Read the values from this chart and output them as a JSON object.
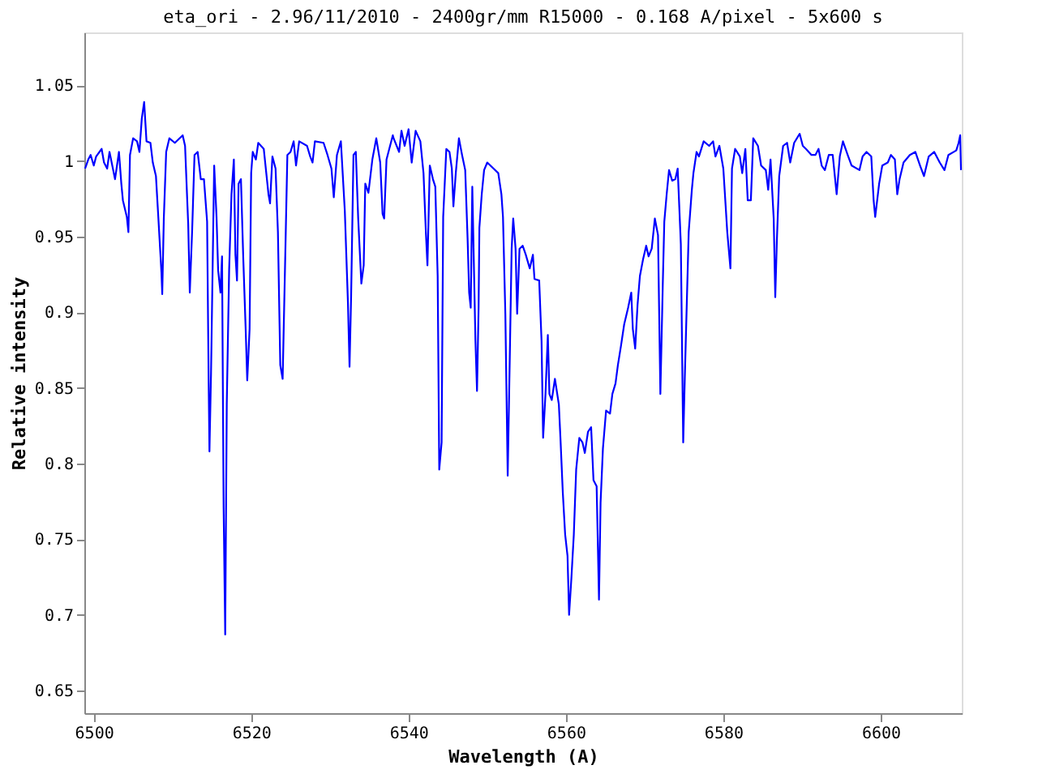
{
  "chart_data": {
    "type": "line",
    "title": "eta_ori - 2.96/11/2010 - 2400gr/mm R15000 - 0.168 A/pixel - 5x600 s",
    "xlabel": "Wavelength (A)",
    "ylabel": "Relative intensity",
    "xlim": [
      6498.8,
      6610.3
    ],
    "ylim": [
      0.635,
      1.085
    ],
    "xticks": [
      6500,
      6520,
      6540,
      6560,
      6580,
      6600
    ],
    "yticks": [
      0.65,
      0.7,
      0.75,
      0.8,
      0.85,
      0.9,
      0.95,
      1,
      1.05
    ],
    "grid": false,
    "legend": false,
    "marker": "none",
    "line_style": "solid",
    "series": [
      {
        "color": "#0000ff",
        "x": [
          6498.9,
          6499.3,
          6499.6,
          6500.0,
          6500.3,
          6501.0,
          6501.3,
          6501.7,
          6502.0,
          6502.7,
          6503.2,
          6503.5,
          6503.7,
          6504.2,
          6504.4,
          6504.6,
          6505.0,
          6505.5,
          6505.8,
          6506.1,
          6506.4,
          6506.7,
          6507.2,
          6507.5,
          6507.9,
          6508.2,
          6508.6,
          6508.7,
          6508.9,
          6509.2,
          6509.6,
          6510.3,
          6511.3,
          6511.6,
          6512.0,
          6512.2,
          6512.5,
          6512.8,
          6513.2,
          6513.6,
          6514.0,
          6514.4,
          6514.6,
          6514.7,
          6514.9,
          6515.3,
          6515.6,
          6515.8,
          6516.1,
          6516.3,
          6516.5,
          6516.7,
          6516.9,
          6517.2,
          6517.5,
          6517.8,
          6518.0,
          6518.2,
          6518.4,
          6518.7,
          6519.0,
          6519.3,
          6519.5,
          6519.8,
          6520.0,
          6520.2,
          6520.6,
          6520.9,
          6521.6,
          6522.2,
          6522.4,
          6522.7,
          6523.1,
          6523.4,
          6523.7,
          6524.0,
          6524.4,
          6524.6,
          6525.0,
          6525.4,
          6525.7,
          6526.1,
          6527.1,
          6527.5,
          6527.8,
          6528.1,
          6529.2,
          6529.7,
          6530.2,
          6530.5,
          6530.9,
          6531.4,
          6531.9,
          6532.3,
          6532.5,
          6532.7,
          6533.0,
          6533.3,
          6533.6,
          6534.0,
          6534.3,
          6534.5,
          6534.9,
          6535.4,
          6535.9,
          6536.4,
          6536.7,
          6536.9,
          6537.2,
          6538.0,
          6538.1,
          6538.8,
          6539.1,
          6539.5,
          6540.0,
          6540.4,
          6540.9,
          6541.5,
          6541.9,
          6542.2,
          6542.4,
          6542.7,
          6543.1,
          6543.4,
          6543.7,
          6543.9,
          6544.2,
          6544.4,
          6544.8,
          6545.2,
          6545.5,
          6545.7,
          6546.0,
          6546.4,
          6546.8,
          6547.2,
          6547.5,
          6547.7,
          6547.9,
          6548.1,
          6548.5,
          6548.7,
          6548.9,
          6549.0,
          6549.3,
          6549.6,
          6550.0,
          6550.8,
          6551.4,
          6551.8,
          6552.0,
          6552.3,
          6552.6,
          6552.9,
          6553.1,
          6553.3,
          6553.6,
          6553.8,
          6554.1,
          6554.5,
          6554.9,
          6555.4,
          6555.8,
          6556.0,
          6556.6,
          6556.9,
          6557.1,
          6557.4,
          6557.7,
          6557.9,
          6558.2,
          6558.6,
          6559.1,
          6559.3,
          6559.6,
          6559.9,
          6560.2,
          6560.4,
          6560.7,
          6561.0,
          6561.3,
          6561.7,
          6562.1,
          6562.4,
          6562.8,
          6563.2,
          6563.5,
          6563.9,
          6564.2,
          6564.4,
          6564.7,
          6565.1,
          6565.6,
          6565.9,
          6566.3,
          6566.6,
          6567.0,
          6567.4,
          6567.9,
          6568.3,
          6568.5,
          6568.8,
          6569.1,
          6569.4,
          6569.8,
          6570.2,
          6570.5,
          6570.9,
          6571.3,
          6571.7,
          6572.0,
          6572.3,
          6572.5,
          6572.8,
          6573.1,
          6573.5,
          6573.9,
          6574.2,
          6574.6,
          6574.9,
          6575.1,
          6575.6,
          6576.0,
          6576.2,
          6576.6,
          6576.9,
          6577.5,
          6578.2,
          6578.7,
          6579.0,
          6579.5,
          6580.0,
          6580.5,
          6580.9,
          6581.1,
          6581.5,
          6582.1,
          6582.4,
          6582.8,
          6583.1,
          6583.5,
          6583.8,
          6584.4,
          6584.8,
          6585.4,
          6585.7,
          6586.0,
          6586.4,
          6586.6,
          6586.8,
          6587.1,
          6587.6,
          6588.1,
          6588.5,
          6589.0,
          6589.7,
          6590.1,
          6590.5,
          6591.2,
          6591.7,
          6592.1,
          6592.5,
          6592.9,
          6593.4,
          6593.9,
          6594.4,
          6594.8,
          6595.2,
          6595.8,
          6596.3,
          6597.3,
          6597.7,
          6598.2,
          6598.8,
          6599.1,
          6599.3,
          6599.8,
          6600.2,
          6600.9,
          6601.3,
          6601.8,
          6602.1,
          6602.4,
          6602.9,
          6603.7,
          6604.4,
          6605.0,
          6605.5,
          6606.1,
          6606.8,
          6607.5,
          6608.1,
          6608.6,
          6609.6,
          6609.9,
          6610.1,
          6610.2
        ],
        "values": [
          0.995,
          1.001,
          1.004,
          0.997,
          1.003,
          1.008,
          0.999,
          0.995,
          1.006,
          0.988,
          1.006,
          0.985,
          0.974,
          0.963,
          0.953,
          1.004,
          1.015,
          1.013,
          1.006,
          1.028,
          1.039,
          1.013,
          1.012,
          0.999,
          0.99,
          0.963,
          0.926,
          0.912,
          0.962,
          1.006,
          1.015,
          1.012,
          1.017,
          1.01,
          0.958,
          0.913,
          0.954,
          1.004,
          1.006,
          0.988,
          0.988,
          0.96,
          0.853,
          0.808,
          0.86,
          0.997,
          0.963,
          0.928,
          0.913,
          0.937,
          0.771,
          0.687,
          0.839,
          0.928,
          0.978,
          1.001,
          0.938,
          0.921,
          0.985,
          0.988,
          0.935,
          0.889,
          0.855,
          0.889,
          0.992,
          1.006,
          1.001,
          1.012,
          1.008,
          0.978,
          0.972,
          1.003,
          0.995,
          0.953,
          0.865,
          0.856,
          0.954,
          1.004,
          1.006,
          1.013,
          0.997,
          1.013,
          1.01,
          1.003,
          0.999,
          1.013,
          1.012,
          1.004,
          0.995,
          0.976,
          1.004,
          1.013,
          0.967,
          0.906,
          0.864,
          0.91,
          1.004,
          1.006,
          0.962,
          0.919,
          0.931,
          0.985,
          0.979,
          1.001,
          1.015,
          0.999,
          0.965,
          0.962,
          1.001,
          1.017,
          1.015,
          1.006,
          1.02,
          1.01,
          1.021,
          0.999,
          1.02,
          1.013,
          0.992,
          0.953,
          0.931,
          0.997,
          0.988,
          0.983,
          0.924,
          0.796,
          0.814,
          0.963,
          1.008,
          1.006,
          0.995,
          0.97,
          0.992,
          1.015,
          1.004,
          0.994,
          0.949,
          0.913,
          0.903,
          0.983,
          0.881,
          0.848,
          0.903,
          0.956,
          0.978,
          0.994,
          0.999,
          0.995,
          0.992,
          0.978,
          0.963,
          0.899,
          0.792,
          0.881,
          0.942,
          0.962,
          0.942,
          0.899,
          0.942,
          0.944,
          0.938,
          0.929,
          0.938,
          0.922,
          0.921,
          0.881,
          0.817,
          0.846,
          0.885,
          0.846,
          0.842,
          0.856,
          0.839,
          0.817,
          0.781,
          0.753,
          0.739,
          0.7,
          0.725,
          0.753,
          0.796,
          0.817,
          0.814,
          0.807,
          0.821,
          0.824,
          0.789,
          0.785,
          0.71,
          0.774,
          0.81,
          0.835,
          0.833,
          0.846,
          0.853,
          0.865,
          0.878,
          0.892,
          0.903,
          0.913,
          0.889,
          0.876,
          0.905,
          0.924,
          0.935,
          0.944,
          0.937,
          0.942,
          0.962,
          0.951,
          0.846,
          0.917,
          0.96,
          0.978,
          0.994,
          0.987,
          0.988,
          0.995,
          0.945,
          0.814,
          0.856,
          0.953,
          0.981,
          0.992,
          1.006,
          1.003,
          1.013,
          1.01,
          1.013,
          1.003,
          1.01,
          0.995,
          0.953,
          0.929,
          0.995,
          1.008,
          1.003,
          0.992,
          1.008,
          0.974,
          0.974,
          1.015,
          1.01,
          0.997,
          0.994,
          0.981,
          1.001,
          0.962,
          0.91,
          0.947,
          0.99,
          1.01,
          1.012,
          0.999,
          1.012,
          1.018,
          1.01,
          1.008,
          1.004,
          1.004,
          1.008,
          0.997,
          0.994,
          1.004,
          1.004,
          0.978,
          1.003,
          1.013,
          1.004,
          0.997,
          0.994,
          1.003,
          1.006,
          1.003,
          0.974,
          0.963,
          0.985,
          0.997,
          0.999,
          1.004,
          1.001,
          0.978,
          0.988,
          0.999,
          1.004,
          1.006,
          0.997,
          0.99,
          1.003,
          1.006,
          0.999,
          0.994,
          1.004,
          1.007,
          1.012,
          1.017,
          0.994
        ]
      }
    ]
  }
}
